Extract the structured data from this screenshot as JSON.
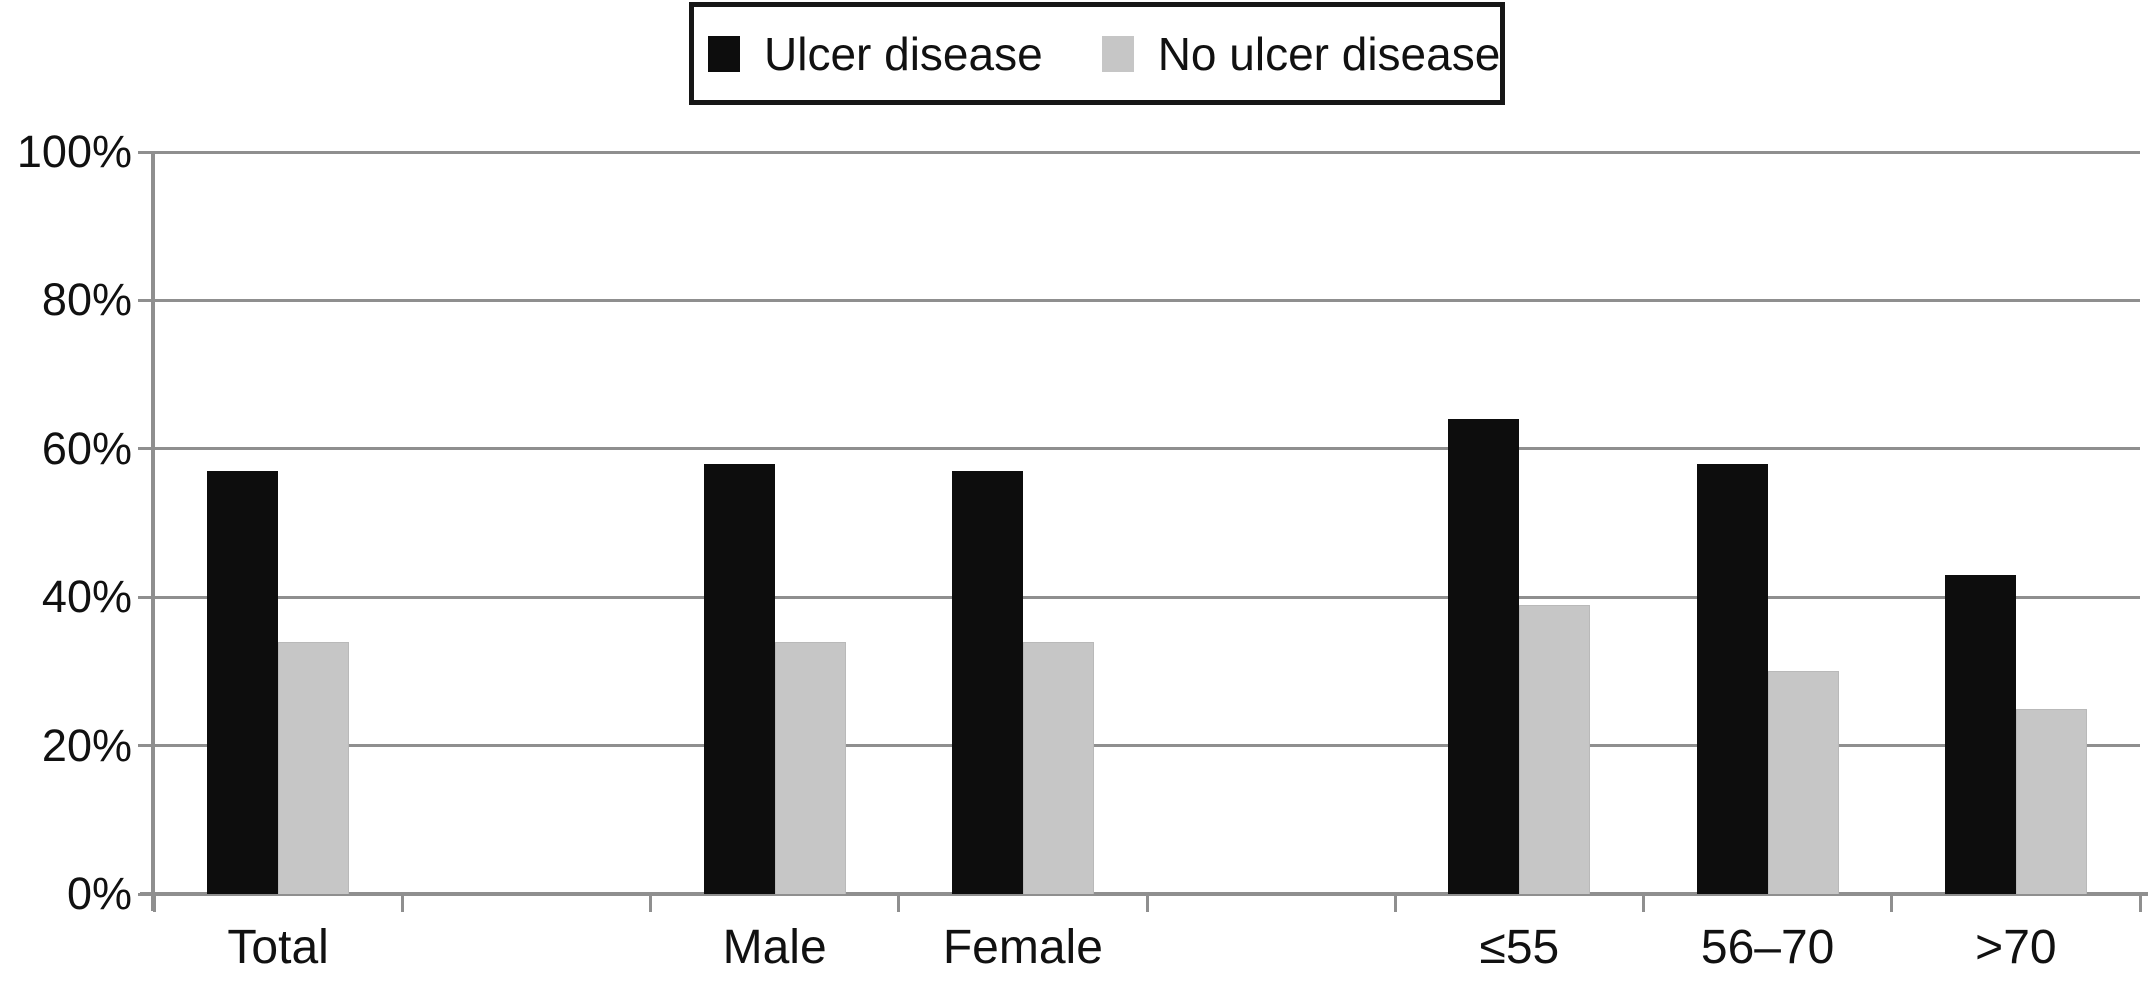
{
  "chart_data": {
    "type": "bar",
    "title": "",
    "xlabel": "",
    "ylabel": "",
    "unit": "%",
    "categories": [
      "Total",
      "Male",
      "Female",
      "≤55",
      "56–70",
      ">70"
    ],
    "slot_index": [
      0,
      2,
      3,
      5,
      6,
      7
    ],
    "num_slots": 8,
    "series": [
      {
        "name": "Ulcer disease",
        "color": "#0d0d0d",
        "values": [
          57,
          58,
          57,
          64,
          58,
          43
        ]
      },
      {
        "name": "No ulcer disease",
        "color": "#c6c6c6",
        "values": [
          34,
          34,
          34,
          39,
          30,
          25
        ]
      }
    ],
    "y_ticks": [
      "0%",
      "20%",
      "40%",
      "60%",
      "80%",
      "100%"
    ],
    "ylim": [
      0,
      100
    ],
    "grid": true,
    "legend_position": "top-center"
  },
  "colors": {
    "bar_black": "#0d0d0d",
    "bar_gray": "#c6c6c6",
    "gridline": "#8f8f8f",
    "axis": "#8f8f8f",
    "text": "#111111",
    "legend_border": "#161616",
    "background": "#ffffff"
  }
}
